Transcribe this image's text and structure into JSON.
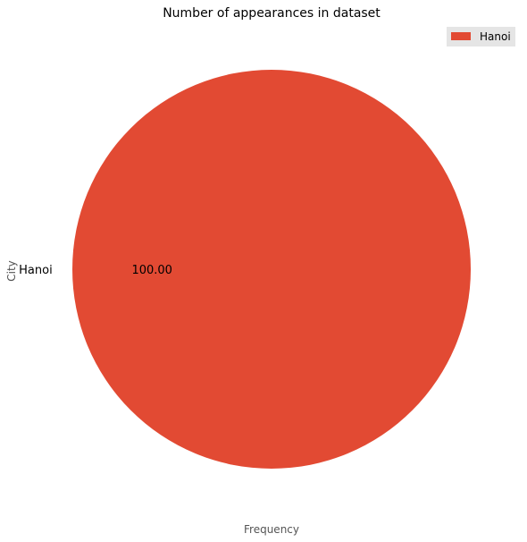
{
  "chart_data": {
    "type": "pie",
    "title": "Number of appearances in dataset",
    "xlabel": "Frequency",
    "ylabel": "City",
    "categories": [
      "Hanoi"
    ],
    "values": [
      100.0
    ],
    "slice_labels": [
      "Hanoi"
    ],
    "pct_labels": [
      "100.00"
    ],
    "colors": [
      "#E24A33"
    ],
    "legend": {
      "entries": [
        "Hanoi"
      ],
      "position": "top-right"
    },
    "grid": false
  }
}
